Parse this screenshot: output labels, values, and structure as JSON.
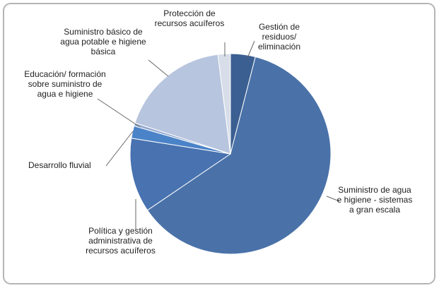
{
  "chart_data": {
    "type": "pie",
    "categories": [
      "Gestión de residuos/ eliminación",
      "Suministro de agua e higiene - sistemas a gran escala",
      "Política y gestión administrativa de recursos acuíferos",
      "Desarrollo fluvial",
      "Educación/ formación sobre suministro de agua e higiene",
      "Suministro básico de agua potable e higiene básica",
      "Protección de recursos acuíferos"
    ],
    "values": [
      4,
      61.5,
      12,
      2,
      0.5,
      18,
      2
    ],
    "colors": [
      "#3b5f91",
      "#4a72a9",
      "#4872b0",
      "#4b83c8",
      "#93a9cf",
      "#b8c5de",
      "#d7dee9"
    ]
  }
}
